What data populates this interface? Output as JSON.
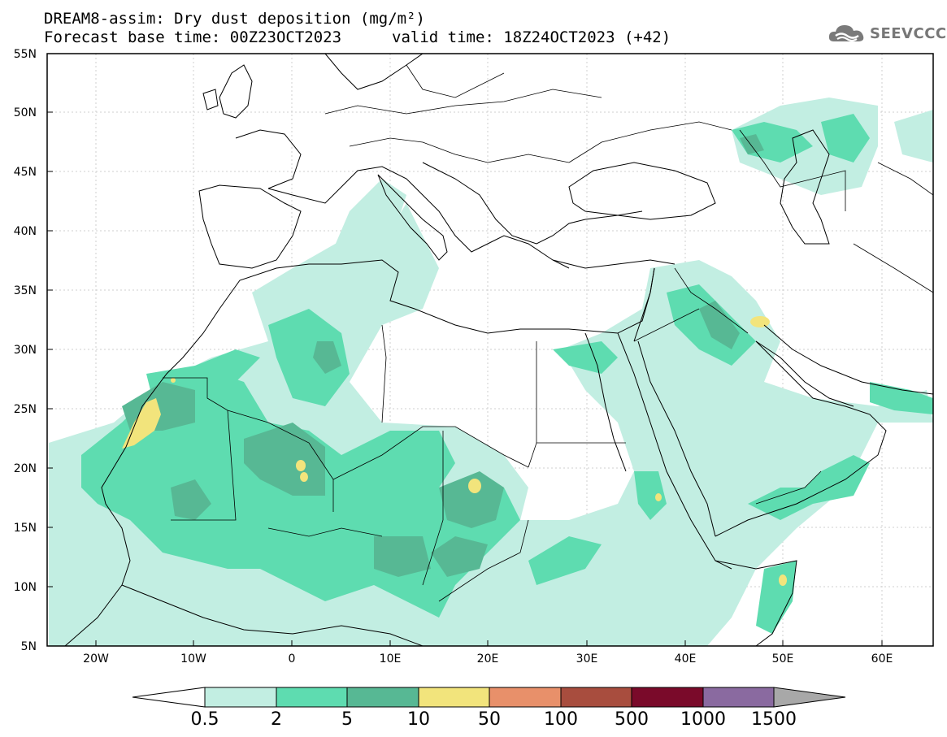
{
  "header": {
    "title_line1": "DREAM8-assim: Dry dust deposition (mg/m²)",
    "base_time": "Forecast base time: 00Z23OCT2023",
    "valid_time": "valid time: 18Z24OCT2023 (+42)"
  },
  "logo": {
    "text": "SEEVCCC",
    "icon": "cloud-icon"
  },
  "map": {
    "lat_labels": [
      "55N",
      "50N",
      "45N",
      "40N",
      "35N",
      "30N",
      "25N",
      "20N",
      "15N",
      "10N",
      "5N"
    ],
    "lon_labels": [
      "20W",
      "10W",
      "0",
      "10E",
      "20E",
      "30E",
      "40E",
      "50E",
      "60E"
    ],
    "lon_range": [
      -25,
      65
    ],
    "lat_range": [
      5,
      55
    ]
  },
  "colorbar": {
    "labels": [
      "0.5",
      "2",
      "5",
      "10",
      "50",
      "100",
      "500",
      "1000",
      "1500"
    ],
    "colors": [
      "#ffffff",
      "#c2eee2",
      "#5edcb0",
      "#57b894",
      "#f2e47c",
      "#e8906a",
      "#a84d3e",
      "#7a0a2a",
      "#8a6aa0",
      "#a8a8a8"
    ]
  },
  "legend_colors": {
    "c1": "#c2eee2",
    "c2": "#5edcb0",
    "c3": "#57b894",
    "c4": "#f2e47c"
  }
}
